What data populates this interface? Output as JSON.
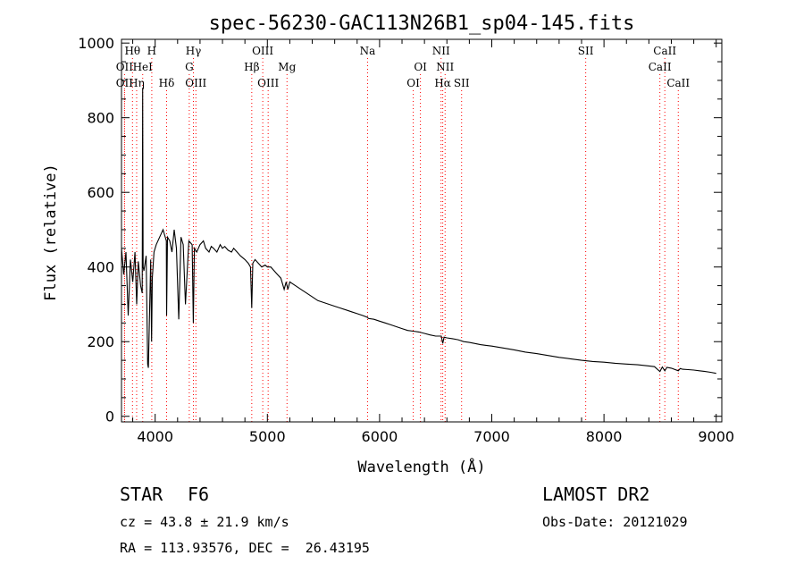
{
  "chart_data": {
    "type": "line",
    "title": "spec-56230-GAC113N26B1_sp04-145.fits",
    "xlabel": "Wavelength (Å)",
    "ylabel": "Flux (relative)",
    "xlim": [
      3700,
      9050
    ],
    "ylim": [
      -15,
      1010
    ],
    "xticks": [
      4000,
      5000,
      6000,
      7000,
      8000,
      9000
    ],
    "yticks": [
      0,
      200,
      400,
      600,
      800,
      1000
    ],
    "grid": false,
    "line_color": "#000000",
    "marker_color": "#ff0000",
    "series": [
      {
        "x": [
          3700,
          3720,
          3740,
          3760,
          3780,
          3800,
          3820,
          3835,
          3850,
          3870,
          3885,
          3889,
          3893,
          3900,
          3920,
          3933,
          3940,
          3960,
          3968,
          3975,
          3990,
          4010,
          4040,
          4070,
          4100,
          4102,
          4110,
          4130,
          4150,
          4170,
          4190,
          4210,
          4230,
          4250,
          4270,
          4300,
          4330,
          4340,
          4350,
          4370,
          4400,
          4430,
          4450,
          4480,
          4500,
          4520,
          4550,
          4580,
          4600,
          4620,
          4650,
          4680,
          4700,
          4730,
          4760,
          4800,
          4830,
          4850,
          4861,
          4870,
          4890,
          4920,
          4950,
          4980,
          5000,
          5030,
          5060,
          5090,
          5120,
          5150,
          5167,
          5183,
          5200,
          5250,
          5300,
          5350,
          5400,
          5450,
          5500,
          5550,
          5600,
          5650,
          5700,
          5750,
          5800,
          5850,
          5893,
          5900,
          5950,
          6000,
          6050,
          6100,
          6150,
          6200,
          6250,
          6300,
          6350,
          6400,
          6450,
          6500,
          6550,
          6563,
          6575,
          6600,
          6650,
          6700,
          6750,
          6800,
          6850,
          6900,
          6950,
          7000,
          7100,
          7200,
          7300,
          7400,
          7500,
          7600,
          7700,
          7800,
          7900,
          8000,
          8100,
          8200,
          8300,
          8400,
          8450,
          8498,
          8520,
          8542,
          8560,
          8600,
          8662,
          8680,
          8700,
          8750,
          8800,
          8850,
          8900,
          8950,
          9000
        ],
        "y": [
          450,
          380,
          440,
          270,
          420,
          360,
          440,
          300,
          415,
          350,
          330,
          880,
          400,
          390,
          430,
          140,
          130,
          420,
          200,
          370,
          440,
          460,
          480,
          500,
          470,
          270,
          480,
          470,
          440,
          500,
          450,
          260,
          480,
          460,
          300,
          470,
          460,
          250,
          450,
          440,
          460,
          470,
          450,
          440,
          455,
          450,
          440,
          460,
          450,
          455,
          445,
          440,
          450,
          440,
          430,
          420,
          410,
          400,
          290,
          410,
          420,
          410,
          400,
          405,
          400,
          400,
          390,
          380,
          370,
          340,
          360,
          340,
          360,
          350,
          340,
          330,
          320,
          310,
          305,
          300,
          295,
          290,
          285,
          280,
          275,
          270,
          265,
          262,
          260,
          255,
          250,
          245,
          240,
          235,
          230,
          228,
          226,
          222,
          218,
          215,
          215,
          195,
          212,
          210,
          208,
          205,
          200,
          198,
          195,
          192,
          190,
          188,
          183,
          178,
          172,
          168,
          163,
          158,
          154,
          150,
          147,
          145,
          142,
          140,
          138,
          135,
          133,
          120,
          132,
          122,
          131,
          129,
          122,
          128,
          126,
          125,
          124,
          122,
          120,
          118,
          115
        ]
      }
    ],
    "lines_row1": [
      {
        "label": "Hθ",
        "wl": 3798
      },
      {
        "label": "H",
        "wl": 3970
      },
      {
        "label": "Hγ",
        "wl": 4341
      },
      {
        "label": "OIII",
        "wl": 4959
      },
      {
        "label": "Na",
        "wl": 5893
      },
      {
        "label": "NII",
        "wl": 6548
      },
      {
        "label": "SII",
        "wl": 7837
      },
      {
        "label": "CaII",
        "wl": 8542
      }
    ],
    "lines_row2": [
      {
        "label": "OII",
        "wl": 3727
      },
      {
        "label": "HeI",
        "wl": 3889
      },
      {
        "label": "G",
        "wl": 4304
      },
      {
        "label": "Hβ",
        "wl": 4861
      },
      {
        "label": "Mg",
        "wl": 5175
      },
      {
        "label": "OI",
        "wl": 6364
      },
      {
        "label": "NII",
        "wl": 6584
      },
      {
        "label": "CaII",
        "wl": 8498
      }
    ],
    "lines_row3": [
      {
        "label": "OII",
        "wl": 3727
      },
      {
        "label": "Hη",
        "wl": 3835
      },
      {
        "label": "Hδ",
        "wl": 4102
      },
      {
        "label": "OIII",
        "wl": 4363
      },
      {
        "label": "OIII",
        "wl": 5007
      },
      {
        "label": "OI",
        "wl": 6300
      },
      {
        "label": "Hα",
        "wl": 6563
      },
      {
        "label": "SII",
        "wl": 6731
      },
      {
        "label": "CaII",
        "wl": 8662
      }
    ]
  },
  "info": {
    "class_label": "STAR",
    "subclass": "F6",
    "survey": "LAMOST DR2",
    "cz": "cz = 43.8 ± 21.9 km/s",
    "obs_date": "Obs-Date: 20121029",
    "radec": "RA = 113.93576, DEC =  26.43195"
  }
}
